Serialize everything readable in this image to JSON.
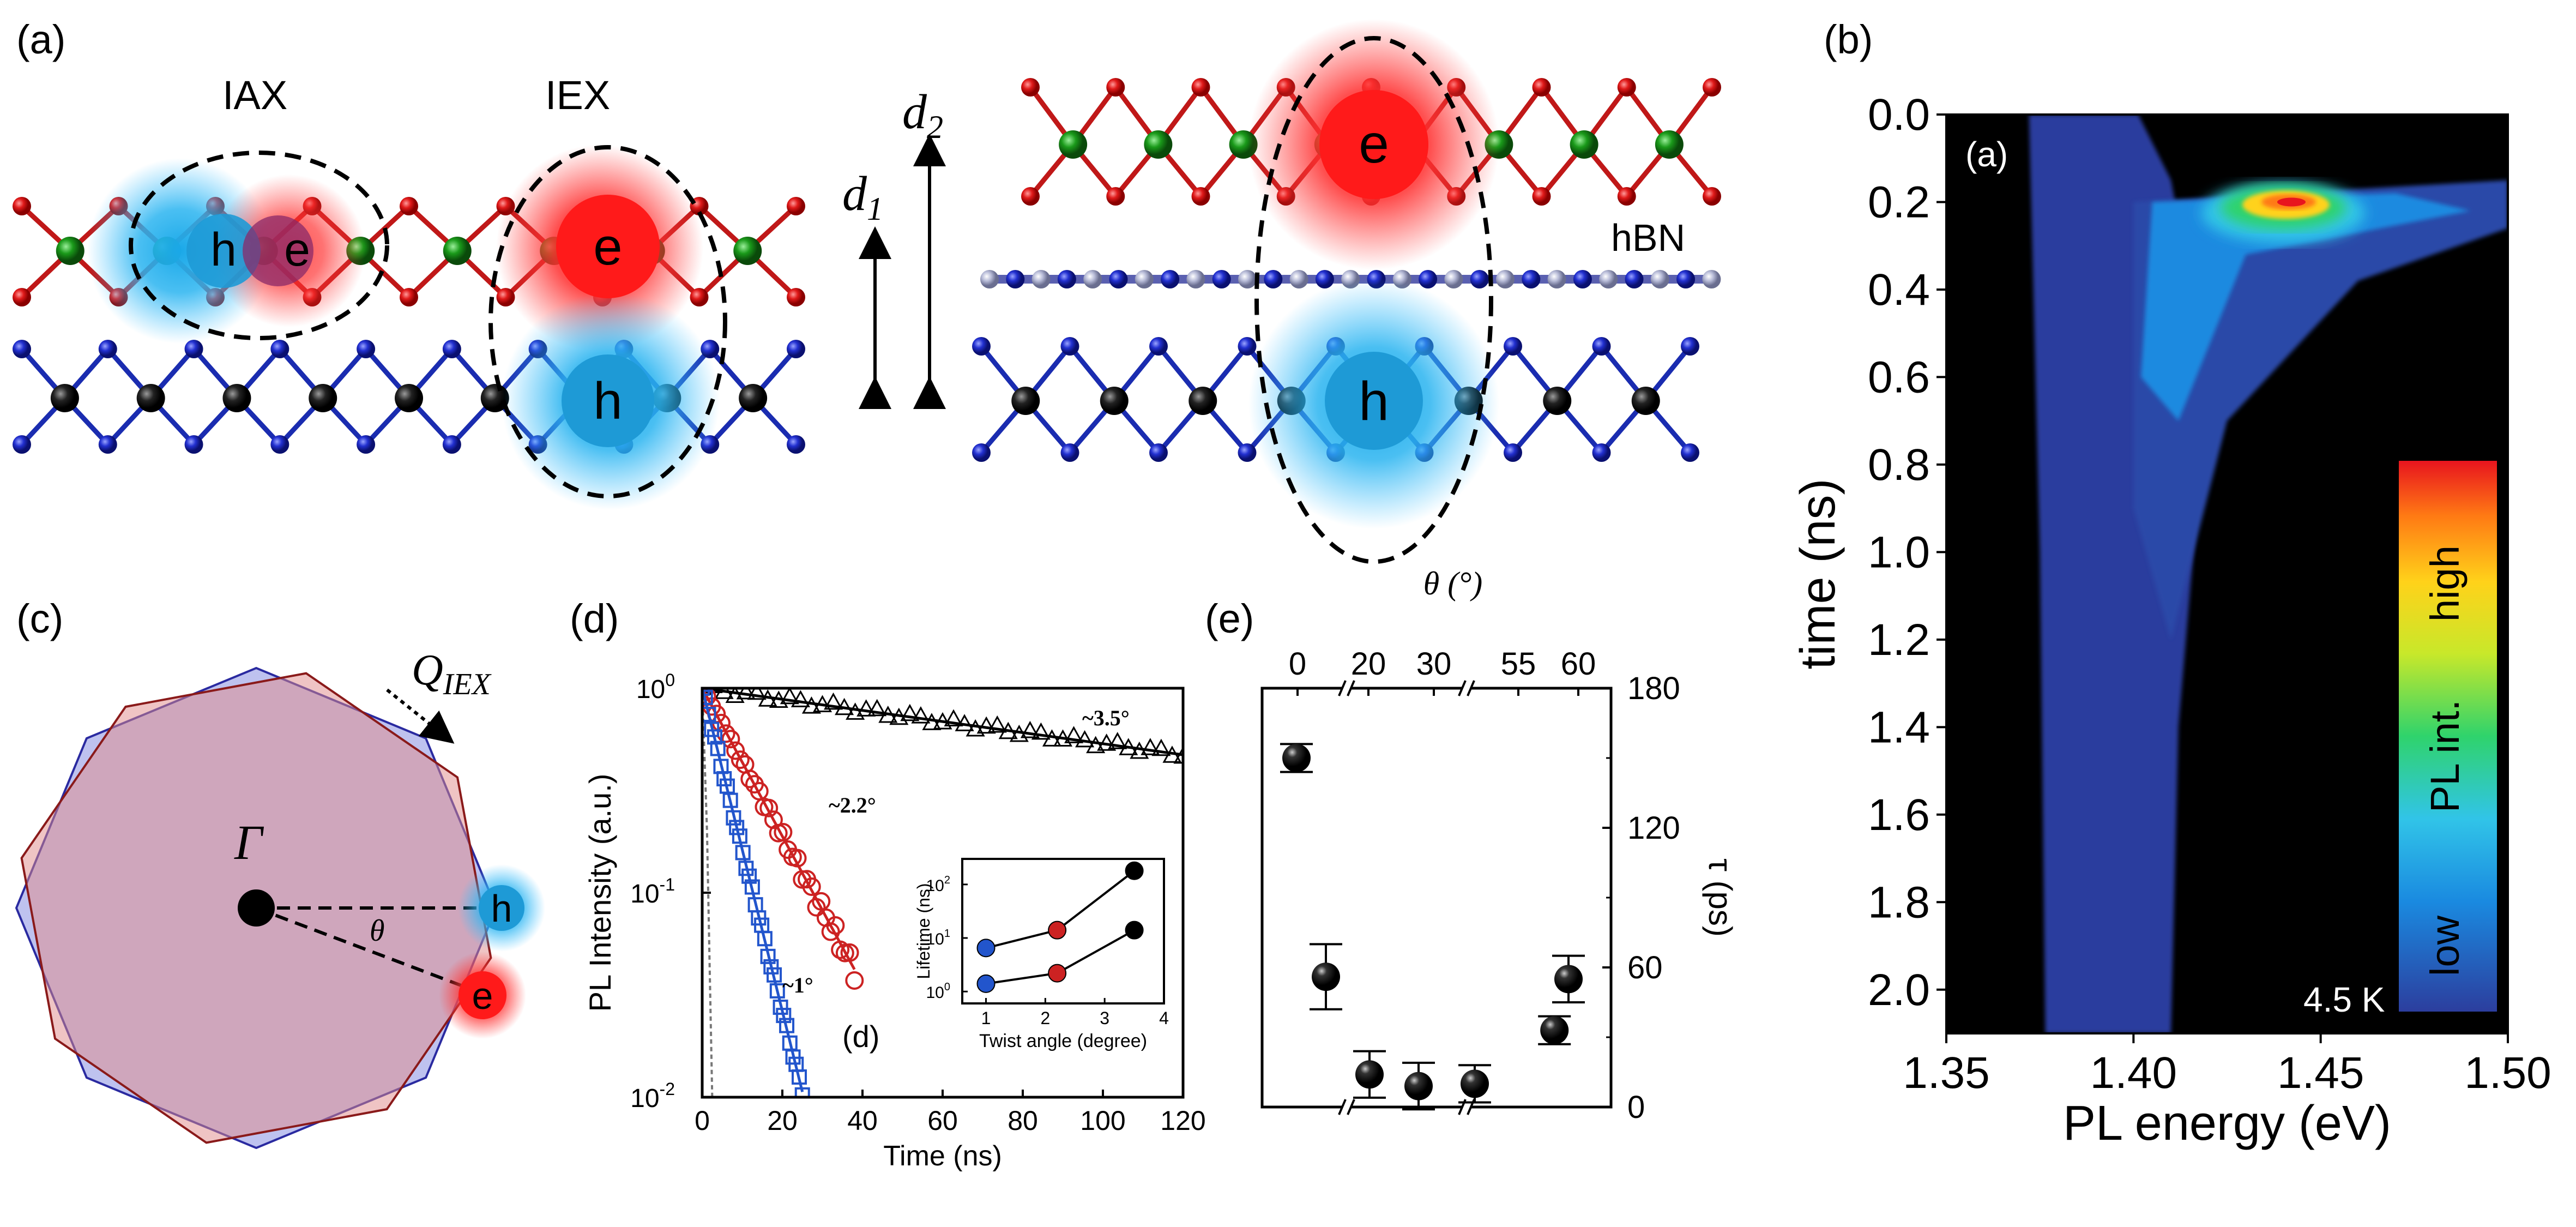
{
  "panels": {
    "a": {
      "label": "(a)",
      "iax": "IAX",
      "iex": "IEX",
      "hbn": "hBN",
      "d1": "d",
      "d1_sub": "1",
      "d2": "d",
      "d2_sub": "2",
      "electron": "e",
      "hole": "h"
    },
    "b": {
      "label": "(b)",
      "inner_label": "(a)",
      "temperature": "4.5 K",
      "colorbar": {
        "high": "high",
        "mid": "PL int.",
        "low": "low"
      }
    },
    "c": {
      "label": "(c)",
      "gamma": "Γ",
      "theta": "θ",
      "q_iex": "Q",
      "q_sub": "IEX",
      "hole": "h",
      "electron": "e"
    },
    "d": {
      "label": "(d)",
      "inner_label": "(d)"
    },
    "e": {
      "label": "(e)"
    }
  },
  "chart_data": [
    {
      "id": "b",
      "type": "heatmap",
      "xlabel": "PL energy (eV)",
      "ylabel": "time (ns)",
      "xlim": [
        1.35,
        1.5
      ],
      "ylim": [
        0.0,
        2.1
      ],
      "x_ticks": [
        "1.35",
        "1.40",
        "1.45",
        "1.50"
      ],
      "y_ticks": [
        "0.0",
        "0.2",
        "0.4",
        "0.6",
        "0.8",
        "1.0",
        "1.2",
        "1.4",
        "1.6",
        "1.8",
        "2.0"
      ],
      "y_inverted": true,
      "colormap": [
        "#2c3e9e",
        "#1a8ae0",
        "#31c4e8",
        "#2fd36c",
        "#c8e82a",
        "#ffd21a",
        "#ff7a14",
        "#e8141e"
      ],
      "features": {
        "low_energy_band_eV": [
          1.375,
          1.41
        ],
        "peak_time_ns": 0.2,
        "peak_energy_eV": 1.44,
        "max_emission_energy_eV": 1.5
      }
    },
    {
      "id": "d",
      "type": "scatter",
      "xlabel": "Time (ns)",
      "ylabel": "PL Intensity (a.u.)",
      "ylog": true,
      "xlim": [
        0,
        120
      ],
      "ylim": [
        0.01,
        1
      ],
      "x_ticks": [
        "0",
        "20",
        "40",
        "60",
        "80",
        "100",
        "120"
      ],
      "y_ticks": [
        "10",
        "10",
        "10"
      ],
      "y_ticks_exp": [
        "0",
        "-1",
        "-2"
      ],
      "series": [
        {
          "name": "~3.5°",
          "color": "#000000",
          "marker": "triangle",
          "tau_ns": 160,
          "x_max": 120
        },
        {
          "name": "~2.2°",
          "color": "#cc2222",
          "marker": "circle",
          "tau_ns": 12,
          "x_max": 38
        },
        {
          "name": "~1°",
          "color": "#2255cc",
          "marker": "square",
          "tau_ns": 5.5,
          "x_max": 25
        }
      ],
      "inset": {
        "xlabel": "Twist angle (degree)",
        "ylabel": "Lifetime (ns)",
        "ylog": true,
        "xlim": [
          0.6,
          4
        ],
        "ylim": [
          0.6,
          300
        ],
        "x_ticks": [
          "1",
          "2",
          "3",
          "4"
        ],
        "y_ticks_exp": [
          "0",
          "1",
          "2"
        ],
        "series": [
          {
            "x": [
              1.0,
              2.2,
              3.5
            ],
            "y": [
              6.5,
              14,
              180
            ]
          },
          {
            "x": [
              1.0,
              2.2,
              3.5
            ],
            "y": [
              1.4,
              2.2,
              14
            ]
          }
        ],
        "point_colors": [
          "#2255cc",
          "#cc2222",
          "#000000"
        ]
      }
    },
    {
      "id": "e",
      "type": "scatter",
      "top_label": "θ (°)",
      "ylabel": "τ (ps)",
      "ylim": [
        0,
        180
      ],
      "y_ticks": [
        "0",
        "60",
        "120",
        "180"
      ],
      "x_ticks": [
        "0",
        "20",
        "30",
        "55",
        "60"
      ],
      "points": [
        {
          "theta": 0,
          "tau": 150,
          "err": 6
        },
        {
          "theta": 3,
          "tau": 56,
          "err": 14
        },
        {
          "theta": 20,
          "tau": 14,
          "err": 10
        },
        {
          "theta": 30,
          "tau": 9,
          "err": 10
        },
        {
          "theta": 40,
          "tau": 10,
          "err": 8
        },
        {
          "theta": 57,
          "tau": 33,
          "err": 6
        },
        {
          "theta": 60,
          "tau": 55,
          "err": 10
        }
      ]
    }
  ]
}
